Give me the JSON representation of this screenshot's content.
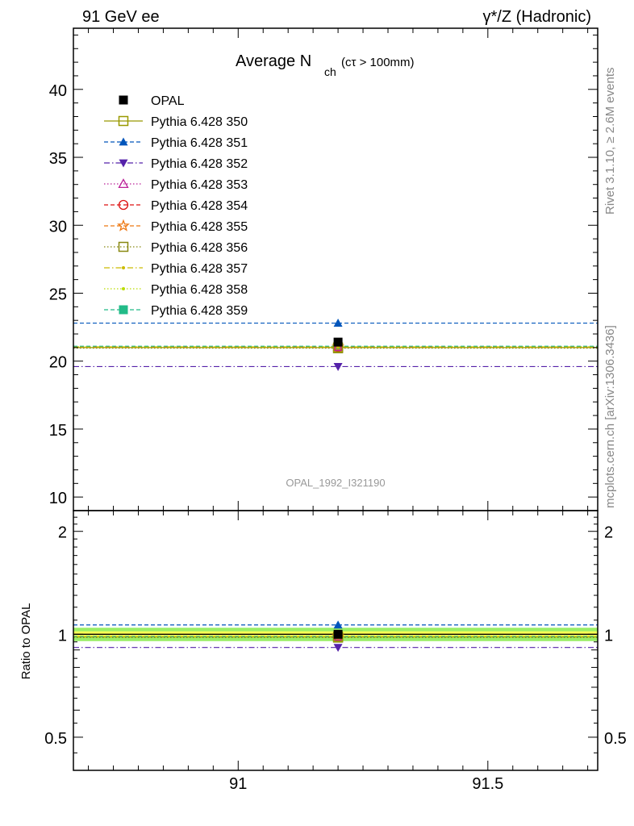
{
  "header": {
    "left": "91 GeV ee",
    "right": "γ*/Z (Hadronic)"
  },
  "title": {
    "main": "Average N",
    "sub": "ch",
    "cond": "(cτ > 100mm)"
  },
  "side_text": {
    "rivet": "Rivet 3.1.10, ≥ 2.6M events",
    "mcplots": "mcplots.cern.ch [arXiv:1306.3436]"
  },
  "watermark": "OPAL_1992_I321190",
  "chart_data": [
    {
      "type": "scatter",
      "panel": "main",
      "x_range": [
        90.67,
        91.72
      ],
      "ylim": [
        9,
        44.5
      ],
      "yticks": [
        "10",
        "15",
        "20",
        "25",
        "30",
        "35",
        "40"
      ],
      "xticks": [
        "91",
        "91.5"
      ],
      "data_x": 91.2,
      "series": [
        {
          "name": "OPAL",
          "y": 21.4,
          "color": "#000000",
          "marker": "square-filled",
          "line": "none"
        },
        {
          "name": "Pythia 6.428 350",
          "y": 21.0,
          "color": "#999900",
          "marker": "square-open",
          "line": "solid"
        },
        {
          "name": "Pythia 6.428 351",
          "y": 22.8,
          "color": "#0055bb",
          "marker": "triangle-up-filled",
          "line": "dashed"
        },
        {
          "name": "Pythia 6.428 352",
          "y": 19.6,
          "color": "#5522aa",
          "marker": "triangle-down-filled",
          "line": "dashdot"
        },
        {
          "name": "Pythia 6.428 353",
          "y": 21.05,
          "color": "#bb2299",
          "marker": "triangle-up-open",
          "line": "dotted"
        },
        {
          "name": "Pythia 6.428 354",
          "y": 21.05,
          "color": "#dd1111",
          "marker": "circle-open",
          "line": "dashed"
        },
        {
          "name": "Pythia 6.428 355",
          "y": 21.05,
          "color": "#ee7711",
          "marker": "star-open",
          "line": "dashed"
        },
        {
          "name": "Pythia 6.428 356",
          "y": 20.95,
          "color": "#888811",
          "marker": "square-open",
          "line": "dotted"
        },
        {
          "name": "Pythia 6.428 357",
          "y": 21.05,
          "color": "#ccbb00",
          "marker": "dot",
          "line": "dashdot"
        },
        {
          "name": "Pythia 6.428 358",
          "y": 21.05,
          "color": "#bbdd00",
          "marker": "dot",
          "line": "dotted"
        },
        {
          "name": "Pythia 6.428 359",
          "y": 21.1,
          "color": "#22bb88",
          "marker": "square-filled",
          "line": "dashed"
        }
      ]
    },
    {
      "type": "scatter",
      "panel": "ratio",
      "ylabel": "Ratio to OPAL",
      "log_y": true,
      "ylim": [
        0.4,
        2.3
      ],
      "yticks": [
        "0.5",
        "1",
        "2"
      ],
      "band": {
        "inner": [
          0.98,
          1.02
        ],
        "outer": [
          0.955,
          1.045
        ],
        "inner_color": "#ffff55",
        "outer_color": "#99ee66"
      },
      "series_ratios": [
        1.0,
        0.983,
        1.065,
        0.915,
        0.985,
        0.985,
        0.985,
        0.978,
        0.985,
        0.985,
        0.986
      ]
    }
  ]
}
